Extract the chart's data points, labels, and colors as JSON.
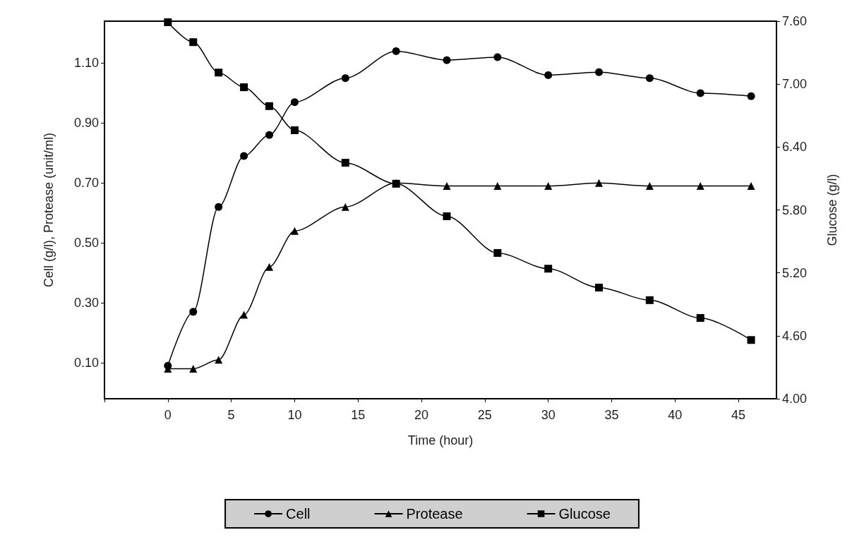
{
  "chart_data": {
    "type": "line",
    "xlabel": "Time (hour)",
    "ylabel": "Cell (g/l), Protease (unit/ml)",
    "y2label": "Glucose (g/l)",
    "x": [
      0,
      2,
      4,
      6,
      8,
      10,
      14,
      18,
      22,
      26,
      30,
      34,
      38,
      42,
      46
    ],
    "xlim": [
      -5,
      48
    ],
    "xticks": [
      {
        "value": -5,
        "label": null
      },
      0,
      5,
      10,
      15,
      20,
      25,
      30,
      35,
      40,
      45
    ],
    "ylim": [
      -0.02,
      1.24
    ],
    "yticks": [
      {
        "value": 0.1,
        "label": "0.10"
      },
      {
        "value": 0.3,
        "label": "0.30"
      },
      {
        "value": 0.5,
        "label": "0.50"
      },
      {
        "value": 0.7,
        "label": "0.70"
      },
      {
        "value": 0.9,
        "label": "0.90"
      },
      {
        "value": 1.1,
        "label": "1.10"
      }
    ],
    "y2lim": [
      4,
      7.6
    ],
    "y2ticks": [
      {
        "value": 4,
        "label": "4.00"
      },
      {
        "value": 4.6,
        "label": "4.60"
      },
      {
        "value": 5.2,
        "label": "5.20"
      },
      {
        "value": 5.8,
        "label": "5.80"
      },
      {
        "value": 6.4,
        "label": "6.40"
      },
      {
        "value": 7,
        "label": "7.00"
      },
      {
        "value": 7.6,
        "label": "7.60"
      }
    ],
    "grid": false,
    "legend": "bottom",
    "line_style": "solid",
    "series": [
      {
        "name": "Cell",
        "color": "#000000",
        "marker": "circle",
        "values": [
          0.09,
          0.27,
          0.62,
          0.79,
          0.86,
          0.97,
          1.05,
          1.14,
          1.11,
          1.12,
          1.06,
          1.07,
          1.05,
          1.0,
          0.99
        ]
      },
      {
        "name": "Protease",
        "color": "#000000",
        "marker": "triangle",
        "values": [
          0.08,
          0.08,
          0.11,
          0.26,
          0.42,
          0.54,
          0.62,
          0.7,
          0.69,
          0.69,
          0.69,
          0.7,
          0.69,
          0.69,
          0.69
        ]
      },
      {
        "name": "Glucose",
        "color": "#000000",
        "marker": "square",
        "axis": "y2",
        "values": [
          7.59,
          7.4,
          7.11,
          6.97,
          6.79,
          6.56,
          6.25,
          6.05,
          5.74,
          5.39,
          5.24,
          5.06,
          4.94,
          4.77,
          4.56
        ]
      }
    ]
  }
}
